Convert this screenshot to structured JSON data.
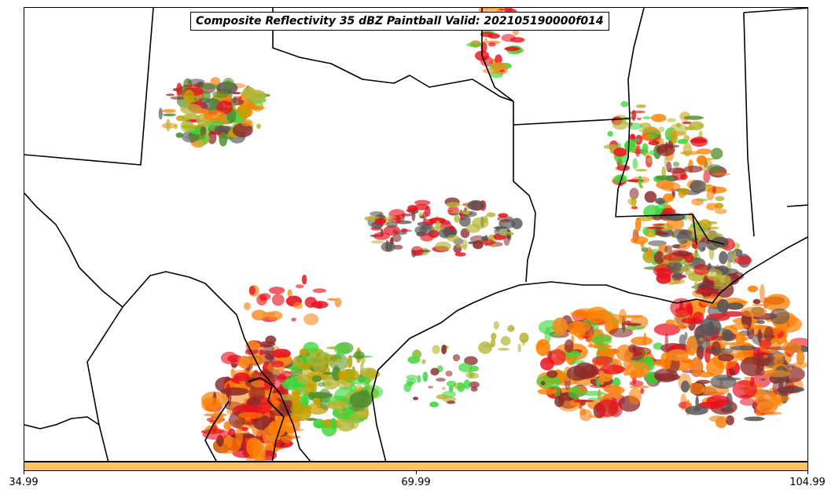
{
  "title": "Composite Reflectivity 35 dBZ Paintball Valid: 202105190000f014",
  "colorbar": {
    "color": "#ffc266",
    "ticks": [
      "34.99",
      "69.99",
      "104.99"
    ]
  },
  "colors": {
    "member_colors": [
      "#e8101e",
      "#f58a1e",
      "#8b2a2a",
      "#3bd63b",
      "#b5b535",
      "#4f8f2f",
      "#555555",
      "#ff7f00",
      "#c8a000"
    ],
    "boundaries": "#000000"
  }
}
